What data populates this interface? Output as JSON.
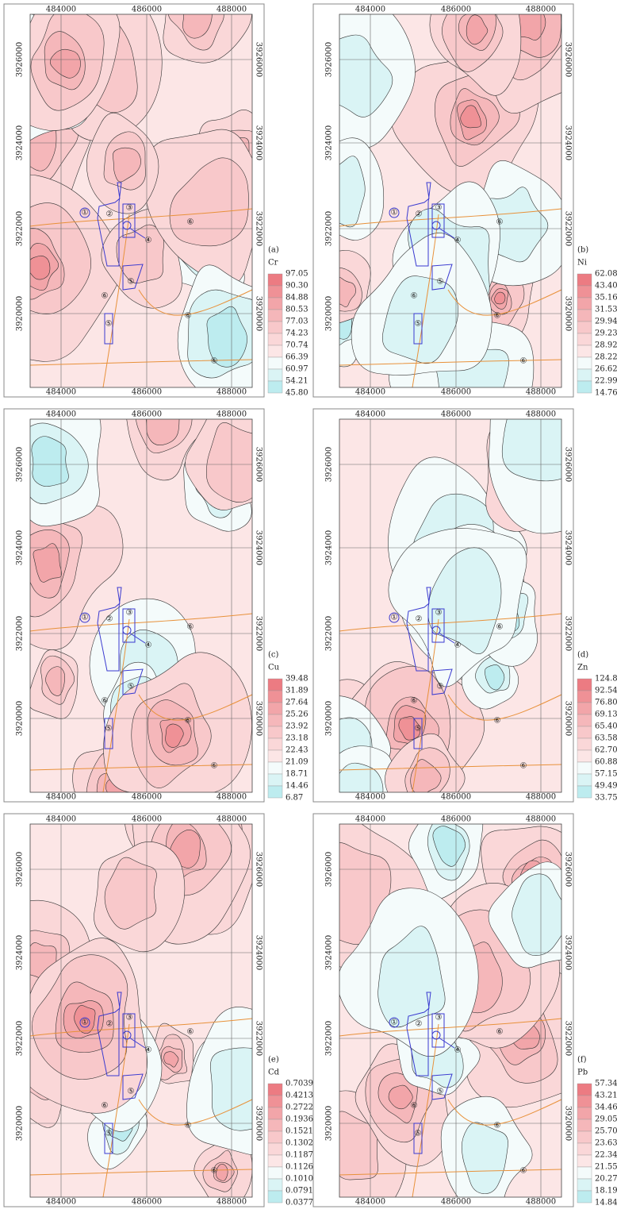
{
  "panels": [
    {
      "label": "(a)",
      "element": "Cr",
      "legend": [
        "97.05",
        "90.30",
        "84.88",
        "80.53",
        "77.03",
        "74.23",
        "70.74",
        "66.39",
        "60.97",
        "54.21",
        "45.80"
      ]
    },
    {
      "label": "(b)",
      "element": "Ni",
      "legend": [
        "62.08",
        "43.40",
        "35.16",
        "31.53",
        "29.94",
        "29.23",
        "28.92",
        "28.22",
        "26.62",
        "22.99",
        "14.76"
      ]
    },
    {
      "label": "(c)",
      "element": "Cu",
      "legend": [
        "39.48",
        "31.89",
        "27.64",
        "25.26",
        "23.92",
        "23.18",
        "22.43",
        "21.09",
        "18.71",
        "14.46",
        "6.87"
      ]
    },
    {
      "label": "(d)",
      "element": "Zn",
      "legend": [
        "124.85",
        "92.54",
        "76.80",
        "69.13",
        "65.40",
        "63.58",
        "62.70",
        "60.88",
        "57.15",
        "49.49",
        "33.75"
      ]
    },
    {
      "label": "(e)",
      "element": "Cd",
      "legend": [
        "0.7039",
        "0.4213",
        "0.2722",
        "0.1936",
        "0.1521",
        "0.1302",
        "0.1187",
        "0.1126",
        "0.1010",
        "0.0791",
        "0.0377"
      ]
    },
    {
      "label": "(f)",
      "element": "Pb",
      "legend": [
        "57.34",
        "43.21",
        "34.46",
        "29.05",
        "25.70",
        "23.63",
        "22.34",
        "21.55",
        "20.27",
        "18.19",
        "14.84"
      ]
    }
  ],
  "xticks": [
    484000,
    486000,
    488000
  ],
  "yticks": [
    3926000,
    3924000,
    3922000,
    3920000
  ],
  "site_labels": [
    "①",
    "②",
    "③",
    "④",
    "⑤",
    "⑥"
  ]
}
